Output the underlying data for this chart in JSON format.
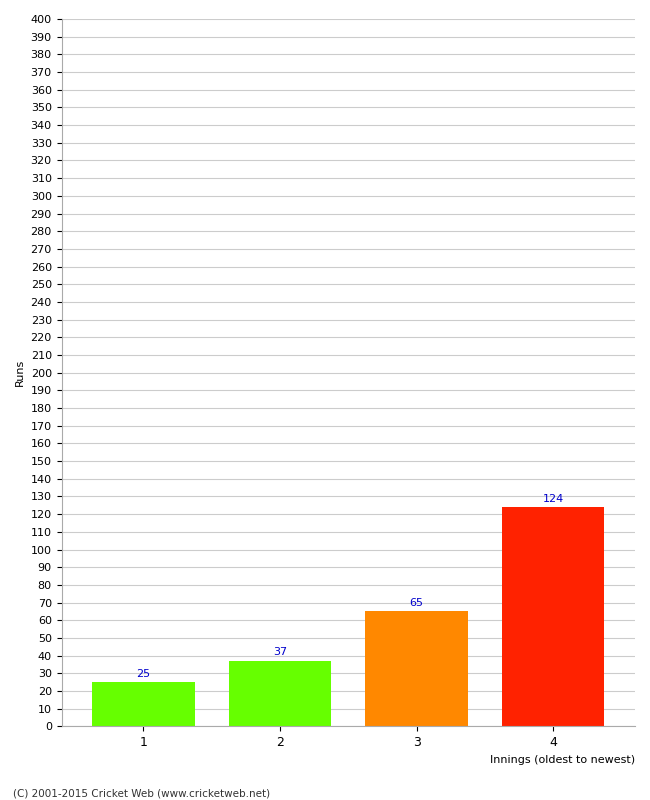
{
  "categories": [
    "1",
    "2",
    "3",
    "4"
  ],
  "values": [
    25,
    37,
    65,
    124
  ],
  "bar_colors": [
    "#66ff00",
    "#66ff00",
    "#ff8800",
    "#ff2200"
  ],
  "xlabel": "Innings (oldest to newest)",
  "ylabel": "Runs",
  "ylim": [
    0,
    400
  ],
  "yticks": [
    0,
    10,
    20,
    30,
    40,
    50,
    60,
    70,
    80,
    90,
    100,
    110,
    120,
    130,
    140,
    150,
    160,
    170,
    180,
    190,
    200,
    210,
    220,
    230,
    240,
    250,
    260,
    270,
    280,
    290,
    300,
    310,
    320,
    330,
    340,
    350,
    360,
    370,
    380,
    390,
    400
  ],
  "annotation_color": "#0000cc",
  "annotation_fontsize": 8,
  "grid_color": "#cccccc",
  "background_color": "#ffffff",
  "footer_text": "(C) 2001-2015 Cricket Web (www.cricketweb.net)"
}
